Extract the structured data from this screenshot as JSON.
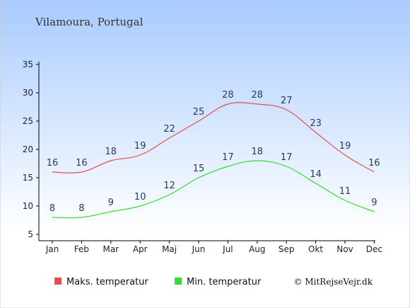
{
  "chart_data": {
    "type": "line",
    "title": "Vilamoura, Portugal",
    "categories": [
      "Jan",
      "Feb",
      "Mar",
      "Apr",
      "Maj",
      "Jun",
      "Jul",
      "Aug",
      "Sep",
      "Okt",
      "Nov",
      "Dec"
    ],
    "series": [
      {
        "name": "Maks. temperatur",
        "color": "#e84c4c",
        "values": [
          16,
          16,
          18,
          19,
          22,
          25,
          28,
          28,
          27,
          23,
          19,
          16
        ]
      },
      {
        "name": "Min. temperatur",
        "color": "#33dd33",
        "values": [
          8,
          8,
          9,
          10,
          12,
          15,
          17,
          18,
          17,
          14,
          11,
          9
        ]
      }
    ],
    "yticks": [
      5,
      10,
      15,
      20,
      25,
      30,
      35
    ],
    "ylim": [
      5,
      35
    ],
    "grid": false,
    "legend_position": "bottom"
  },
  "credit": "© MitRejseVejr.dk",
  "colors": {
    "background_top": "#a9cbff",
    "background_bottom": "#ffffff",
    "axis": "#000000",
    "label_text": "#2a3a55"
  }
}
